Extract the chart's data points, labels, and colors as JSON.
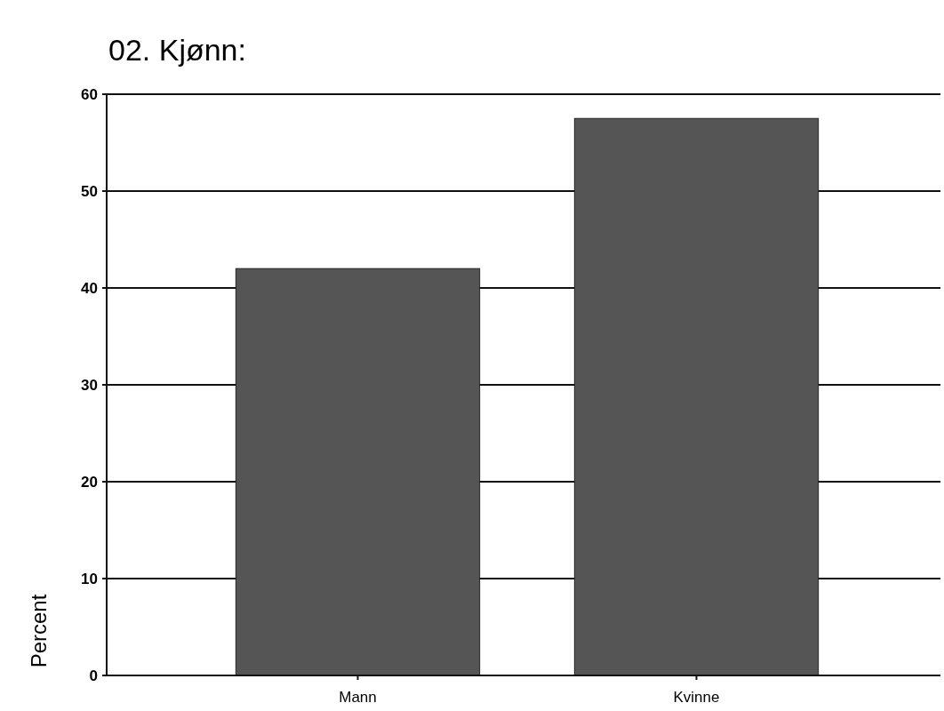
{
  "chart_data": {
    "type": "bar",
    "title": "02. Kjønn:",
    "ylabel": "Percent",
    "categories": [
      "Mann",
      "Kvinne"
    ],
    "values": [
      42,
      57.5
    ],
    "color": "#555555",
    "ylim": [
      0,
      60
    ],
    "yticks": [
      0,
      10,
      20,
      30,
      40,
      50,
      60
    ],
    "grid": "y"
  }
}
